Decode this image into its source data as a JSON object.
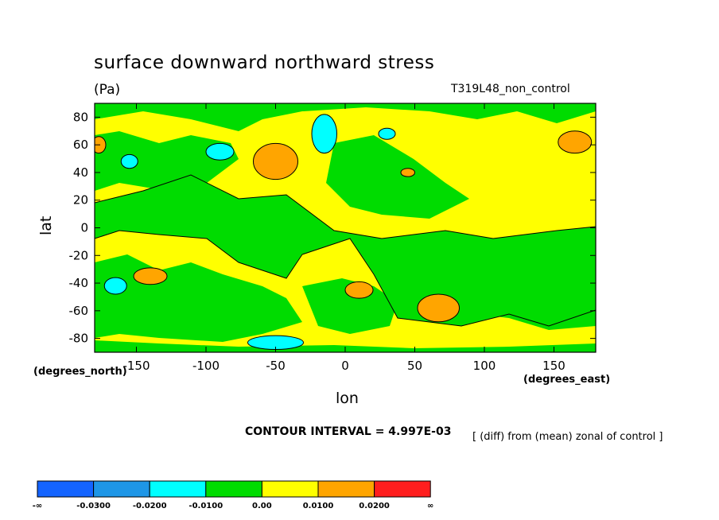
{
  "chart_data": {
    "type": "heatmap",
    "title": "surface downward northward stress",
    "units_label": "(Pa)",
    "run_label": "T319L48_non_control",
    "xlabel": "lon",
    "ylabel": "lat",
    "x_units_label": "(degrees_east)",
    "y_units_label": "(degrees_north)",
    "xlim": [
      -180,
      180
    ],
    "ylim": [
      -90,
      90
    ],
    "x_ticks": [
      -150,
      -100,
      -50,
      0,
      50,
      100,
      150
    ],
    "y_ticks": [
      80,
      60,
      40,
      20,
      0,
      -20,
      -40,
      -60,
      -80
    ],
    "x_tick_labels": [
      "-150",
      "-100",
      "-50",
      "0",
      "50",
      "100",
      "150"
    ],
    "y_tick_labels": [
      "80",
      "60",
      "40",
      "20",
      "0",
      "-20",
      "-40",
      "-60",
      "-80"
    ],
    "contour_interval_text": "CONTOUR INTERVAL = 4.997E-03",
    "note": "[ (diff) from (mean) zonal of control ]",
    "colorbar": {
      "colors": [
        "#1464ff",
        "#1e96e6",
        "#00ffff",
        "#00dc00",
        "#ffff00",
        "#ffa500",
        "#ff1e1e"
      ],
      "labels": [
        "-∞",
        "-0.0300",
        "-0.0200",
        "-0.0100",
        "0.00",
        "0.0100",
        "0.0200",
        "∞"
      ]
    },
    "regions": [
      {
        "level": "orange",
        "lon": -50,
        "lat": 48,
        "rx": 16,
        "ry": 13
      },
      {
        "level": "orange",
        "lon": -140,
        "lat": -35,
        "rx": 12,
        "ry": 6
      },
      {
        "level": "orange",
        "lon": 67,
        "lat": -58,
        "rx": 15,
        "ry": 10
      },
      {
        "level": "orange",
        "lon": 10,
        "lat": -45,
        "rx": 10,
        "ry": 6
      },
      {
        "level": "orange",
        "lon": 165,
        "lat": 62,
        "rx": 12,
        "ry": 8
      },
      {
        "level": "orange",
        "lon": 45,
        "lat": 40,
        "rx": 5,
        "ry": 3
      },
      {
        "level": "orange",
        "lon": -177,
        "lat": 60,
        "rx": 5,
        "ry": 6
      },
      {
        "level": "cyan",
        "lon": -15,
        "lat": 68,
        "rx": 9,
        "ry": 14
      },
      {
        "level": "cyan",
        "lon": -90,
        "lat": 55,
        "rx": 10,
        "ry": 6
      },
      {
        "level": "cyan",
        "lon": -155,
        "lat": 48,
        "rx": 6,
        "ry": 5
      },
      {
        "level": "cyan",
        "lon": -165,
        "lat": -42,
        "rx": 8,
        "ry": 6
      },
      {
        "level": "cyan",
        "lon": -50,
        "lat": -83,
        "rx": 20,
        "ry": 5
      },
      {
        "level": "cyan",
        "lon": 30,
        "lat": 68,
        "rx": 6,
        "ry": 4
      }
    ]
  }
}
